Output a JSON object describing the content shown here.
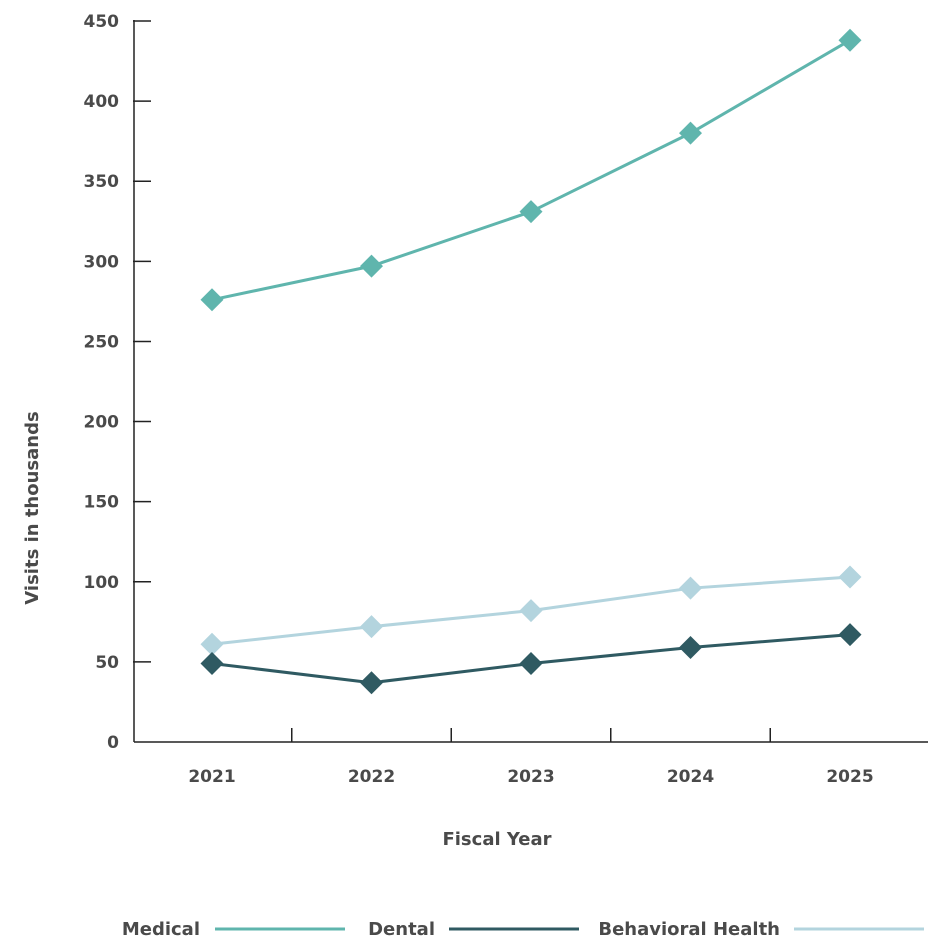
{
  "chart_data": {
    "type": "line",
    "x": [
      "2021",
      "2022",
      "2023",
      "2024",
      "2025"
    ],
    "xlabel": "Fiscal Year",
    "ylabel": "Visits in thousands",
    "ylim": [
      0,
      450
    ],
    "yticks": [
      "0",
      "50",
      "100",
      "150",
      "200",
      "250",
      "300",
      "350",
      "400",
      "450"
    ],
    "grid": false,
    "legend_position": "bottom",
    "series": [
      {
        "name": "Medical",
        "values": [
          276,
          297,
          331,
          380,
          438
        ],
        "color": "#5fb5ad",
        "marker": "diamond"
      },
      {
        "name": "Dental",
        "values": [
          49,
          37,
          49,
          59,
          67
        ],
        "color": "#2f5a62",
        "marker": "diamond"
      },
      {
        "name": "Behavioral Health",
        "values": [
          61,
          72,
          82,
          96,
          103
        ],
        "color": "#b3d4de",
        "marker": "diamond"
      }
    ]
  }
}
